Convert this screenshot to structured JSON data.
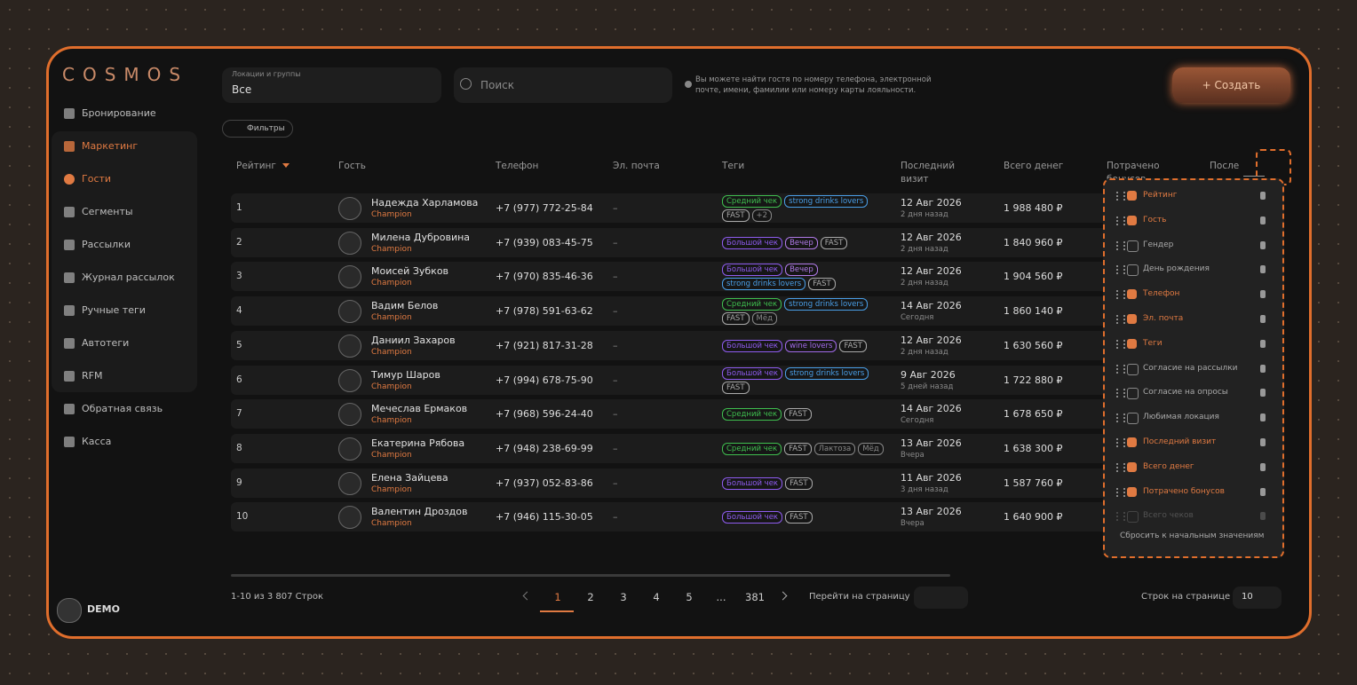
{
  "brand": "COSMOS",
  "sidebar": {
    "items": [
      "Бронирование",
      "Маркетинг",
      "Гости",
      "Сегменты",
      "Рассылки",
      "Журнал рассылок",
      "Ручные теги",
      "Автотеги",
      "RFM",
      "Обратная связь",
      "Касса"
    ],
    "user": "DEMO"
  },
  "toolbar": {
    "location_label": "Локации и группы",
    "location_value": "Все",
    "search_placeholder": "Поиск",
    "hint": "Вы можете найти гостя по номеру телефона, электронной почте, имени, фамилии или номеру карты лояльности.",
    "create": "+ Создать",
    "filters": "Фильтры"
  },
  "table": {
    "headers": [
      "Рейтинг",
      "Гость",
      "Телефон",
      "Эл. почта",
      "Теги",
      "Последний визит",
      "Всего денег",
      "Потрачено бонусов",
      "После"
    ],
    "rows": [
      {
        "rank": "1",
        "name": "Надежда Харламова",
        "status": "Champion",
        "phone": "+7 (977) 772-25-84",
        "email": "–",
        "tags": [
          {
            "text": "Средний чек",
            "color": "#3fbf4f"
          },
          {
            "text": "strong drinks lovers",
            "color": "#4a9fe8"
          },
          {
            "text": "FAST",
            "color": "#aaaaaa"
          },
          {
            "text": "+2",
            "color": "#888888"
          }
        ],
        "visit": "12 Авг 2026",
        "visit_ago": "2 дня назад",
        "money": "1 988 480 ₽"
      },
      {
        "rank": "2",
        "name": "Милена Дубровина",
        "status": "Champion",
        "phone": "+7 (939) 083-45-75",
        "email": "–",
        "tags": [
          {
            "text": "Большой чек",
            "color": "#8f5cf0"
          },
          {
            "text": "Вечер",
            "color": "#b07ae8"
          },
          {
            "text": "FAST",
            "color": "#aaaaaa"
          }
        ],
        "visit": "12 Авг 2026",
        "visit_ago": "2 дня назад",
        "money": "1 840 960 ₽"
      },
      {
        "rank": "3",
        "name": "Моисей Зубков",
        "status": "Champion",
        "phone": "+7 (970) 835-46-36",
        "email": "–",
        "tags": [
          {
            "text": "Большой чек",
            "color": "#8f5cf0"
          },
          {
            "text": "Вечер",
            "color": "#b07ae8"
          },
          {
            "text": "strong drinks lovers",
            "color": "#4a9fe8"
          },
          {
            "text": "FAST",
            "color": "#aaaaaa"
          }
        ],
        "visit": "12 Авг 2026",
        "visit_ago": "2 дня назад",
        "money": "1 904 560 ₽"
      },
      {
        "rank": "4",
        "name": "Вадим Белов",
        "status": "Champion",
        "phone": "+7 (978) 591-63-62",
        "email": "–",
        "tags": [
          {
            "text": "Средний чек",
            "color": "#3fbf4f"
          },
          {
            "text": "strong drinks lovers",
            "color": "#4a9fe8"
          },
          {
            "text": "FAST",
            "color": "#aaaaaa"
          },
          {
            "text": "Мёд",
            "color": "#888888"
          }
        ],
        "visit": "14 Авг 2026",
        "visit_ago": "Сегодня",
        "money": "1 860 140 ₽"
      },
      {
        "rank": "5",
        "name": "Даниил Захаров",
        "status": "Champion",
        "phone": "+7 (921) 817-31-28",
        "email": "–",
        "tags": [
          {
            "text": "Большой чек",
            "color": "#8f5cf0"
          },
          {
            "text": "wine lovers",
            "color": "#a06ae8"
          },
          {
            "text": "FAST",
            "color": "#aaaaaa"
          }
        ],
        "visit": "12 Авг 2026",
        "visit_ago": "2 дня назад",
        "money": "1 630 560 ₽"
      },
      {
        "rank": "6",
        "name": "Тимур Шаров",
        "status": "Champion",
        "phone": "+7 (994) 678-75-90",
        "email": "–",
        "tags": [
          {
            "text": "Большой чек",
            "color": "#8f5cf0"
          },
          {
            "text": "strong drinks lovers",
            "color": "#4a9fe8"
          },
          {
            "text": "FAST",
            "color": "#aaaaaa"
          }
        ],
        "visit": "9 Авг 2026",
        "visit_ago": "5 дней назад",
        "money": "1 722 880 ₽"
      },
      {
        "rank": "7",
        "name": "Мечеслав Ермаков",
        "status": "Champion",
        "phone": "+7 (968) 596-24-40",
        "email": "–",
        "tags": [
          {
            "text": "Средний чек",
            "color": "#3fbf4f"
          },
          {
            "text": "FAST",
            "color": "#aaaaaa"
          }
        ],
        "visit": "14 Авг 2026",
        "visit_ago": "Сегодня",
        "money": "1 678 650 ₽"
      },
      {
        "rank": "8",
        "name": "Екатерина Рябова",
        "status": "Champion",
        "phone": "+7 (948) 238-69-99",
        "email": "–",
        "tags": [
          {
            "text": "Средний чек",
            "color": "#3fbf4f"
          },
          {
            "text": "FAST",
            "color": "#aaaaaa"
          },
          {
            "text": "Лактоза",
            "color": "#888888"
          },
          {
            "text": "Мёд",
            "color": "#888888"
          }
        ],
        "visit": "13 Авг 2026",
        "visit_ago": "Вчера",
        "money": "1 638 300 ₽"
      },
      {
        "rank": "9",
        "name": "Елена Зайцева",
        "status": "Champion",
        "phone": "+7 (937) 052-83-86",
        "email": "–",
        "tags": [
          {
            "text": "Большой чек",
            "color": "#8f5cf0"
          },
          {
            "text": "FAST",
            "color": "#aaaaaa"
          }
        ],
        "visit": "11 Авг 2026",
        "visit_ago": "3 дня назад",
        "money": "1 587 760 ₽"
      },
      {
        "rank": "10",
        "name": "Валентин Дроздов",
        "status": "Champion",
        "phone": "+7 (946) 115-30-05",
        "email": "–",
        "tags": [
          {
            "text": "Большой чек",
            "color": "#8f5cf0"
          },
          {
            "text": "FAST",
            "color": "#aaaaaa"
          }
        ],
        "visit": "13 Авг 2026",
        "visit_ago": "Вчера",
        "money": "1 640 900 ₽"
      }
    ]
  },
  "columns_panel": {
    "items": [
      {
        "label": "Рейтинг",
        "checked": true
      },
      {
        "label": "Гость",
        "checked": true
      },
      {
        "label": "Гендер",
        "checked": false
      },
      {
        "label": "День рождения",
        "checked": false
      },
      {
        "label": "Телефон",
        "checked": true
      },
      {
        "label": "Эл. почта",
        "checked": true
      },
      {
        "label": "Теги",
        "checked": true
      },
      {
        "label": "Согласие на рассылки",
        "checked": false
      },
      {
        "label": "Согласие на опросы",
        "checked": false
      },
      {
        "label": "Любимая локация",
        "checked": false
      },
      {
        "label": "Последний визит",
        "checked": true
      },
      {
        "label": "Всего денег",
        "checked": true
      },
      {
        "label": "Потрачено бонусов",
        "checked": true
      },
      {
        "label": "Всего чеков",
        "checked": false
      }
    ],
    "reset": "Сбросить к начальным значениям"
  },
  "pagination": {
    "summary": "1-10 из 3 807 Строк",
    "pages": [
      "1",
      "2",
      "3",
      "4",
      "5",
      "...",
      "381"
    ],
    "goto": "Перейти на страницу",
    "rows_per_page_label": "Строк на странице",
    "rows_per_page": "10"
  }
}
